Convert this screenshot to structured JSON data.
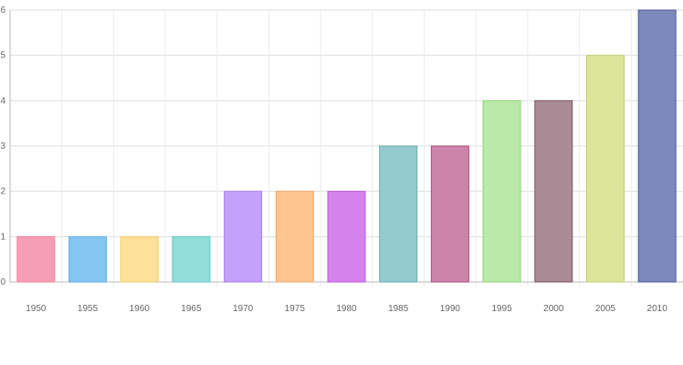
{
  "chart_data": {
    "type": "bar",
    "categories": [
      "1950",
      "1955",
      "1960",
      "1965",
      "1970",
      "1975",
      "1980",
      "1985",
      "1990",
      "1995",
      "2000",
      "2005",
      "2010"
    ],
    "values": [
      1,
      1,
      1,
      1,
      2,
      2,
      2,
      3,
      3,
      4,
      4,
      5,
      6
    ],
    "y_ticks": [
      "0",
      "1",
      "2",
      "3",
      "4",
      "5",
      "6"
    ],
    "ylim": [
      0,
      6
    ],
    "grid": true,
    "bar_colors": [
      "#f79eb5",
      "#85c6f2",
      "#fde09a",
      "#92dcdc",
      "#c3a2fc",
      "#fec491",
      "#d583ec",
      "#94c9cd",
      "#cc85a8",
      "#bbe9a9",
      "#a88b94",
      "#dde59c",
      "#7d88bc"
    ],
    "bar_border_colors": [
      "#f0809a",
      "#5fb0ea",
      "#f5c96a",
      "#60c6c6",
      "#a77ef7",
      "#f9a763",
      "#bb55db",
      "#6aadb2",
      "#a84e7f",
      "#8ed474",
      "#7a5664",
      "#c4cd6b",
      "#4d5a9a"
    ],
    "gridline_color": "#dddddd"
  }
}
